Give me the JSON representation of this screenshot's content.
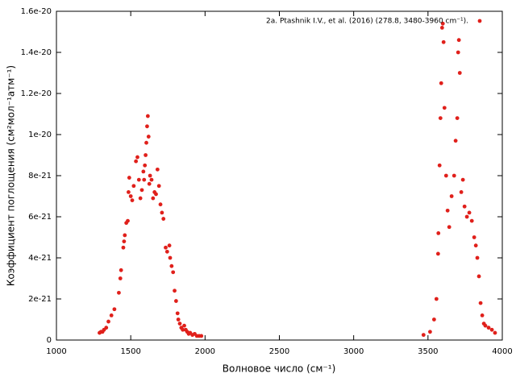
{
  "chart_data": {
    "type": "scatter",
    "xlabel": "Волновое число (см⁻¹)",
    "ylabel": "Коэффициент поглощения (см²мол⁻¹атм⁻¹)",
    "xlim": [
      1000,
      4000
    ],
    "xticks": [
      1000,
      1500,
      2000,
      2500,
      3000,
      3500,
      4000
    ],
    "ylim": [
      0,
      1.6e-20
    ],
    "yticks": [
      0,
      2e-21,
      4e-21,
      6e-21,
      8e-21,
      1e-20,
      1.2e-20,
      1.4e-20,
      1.6e-20
    ],
    "legend": "top right",
    "series": [
      {
        "name": "2a. Ptashnik I.V., et al. (2016) (278.8, 3480-3960 cm⁻¹).",
        "color": "#e0201b",
        "x": [
          1290,
          1300,
          1310,
          1320,
          1335,
          1350,
          1370,
          1390,
          1420,
          1430,
          1435,
          1450,
          1455,
          1460,
          1470,
          1480,
          1485,
          1490,
          1500,
          1510,
          1520,
          1535,
          1545,
          1555,
          1565,
          1575,
          1585,
          1590,
          1595,
          1600,
          1605,
          1610,
          1615,
          1620,
          1625,
          1630,
          1640,
          1650,
          1660,
          1670,
          1680,
          1690,
          1700,
          1710,
          1720,
          1735,
          1745,
          1760,
          1765,
          1775,
          1785,
          1795,
          1805,
          1815,
          1820,
          1830,
          1840,
          1850,
          1860,
          1870,
          1880,
          1890,
          1900,
          1915,
          1930,
          1945,
          1960,
          1975,
          3470,
          3514,
          3541,
          3557,
          3568,
          3570,
          3578,
          3584,
          3589,
          3595,
          3600,
          3605,
          3611,
          3622,
          3632,
          3643,
          3659,
          3676,
          3686,
          3697,
          3703,
          3708,
          3714,
          3724,
          3735,
          3746,
          3762,
          3778,
          3795,
          3811,
          3822,
          3832,
          3843,
          3854,
          3865,
          3876,
          3886,
          3908,
          3930,
          3951
        ],
        "values": [
          3.5e-22,
          4e-22,
          4e-22,
          5e-22,
          6e-22,
          9e-22,
          1.2e-21,
          1.5e-21,
          2.3e-21,
          3e-21,
          3.4e-21,
          4.5e-21,
          4.8e-21,
          5.1e-21,
          5.7e-21,
          5.8e-21,
          7.2e-21,
          7.9e-21,
          7e-21,
          6.8e-21,
          7.5e-21,
          8.7e-21,
          8.9e-21,
          7.8e-21,
          6.9e-21,
          7.3e-21,
          8.2e-21,
          7.8e-21,
          8.5e-21,
          9e-21,
          9.6e-21,
          1.04e-20,
          1.09e-20,
          9.9e-21,
          7.6e-21,
          8e-21,
          7.8e-21,
          6.9e-21,
          7.2e-21,
          7.1e-21,
          8.3e-21,
          7.5e-21,
          6.6e-21,
          6.2e-21,
          5.9e-21,
          4.5e-21,
          4.3e-21,
          4.6e-21,
          4e-21,
          3.6e-21,
          3.3e-21,
          2.4e-21,
          1.9e-21,
          1.3e-21,
          1e-21,
          8e-22,
          6e-22,
          5e-22,
          7e-22,
          5e-22,
          4e-22,
          3e-22,
          3.5e-22,
          2.5e-22,
          3e-22,
          2e-22,
          2e-22,
          2e-22,
          2.5e-22,
          4e-22,
          1e-21,
          2e-21,
          4.2e-21,
          5.2e-21,
          8.5e-21,
          1.08e-20,
          1.25e-20,
          1.52e-20,
          1.54e-20,
          1.45e-20,
          1.13e-20,
          8e-21,
          6.3e-21,
          5.5e-21,
          7e-21,
          8e-21,
          9.7e-21,
          1.08e-20,
          1.4e-20,
          1.46e-20,
          1.3e-20,
          7.2e-21,
          7.8e-21,
          6.5e-21,
          6e-21,
          6.2e-21,
          5.8e-21,
          5e-21,
          4.6e-21,
          4e-21,
          3.1e-21,
          1.8e-21,
          1.2e-21,
          8e-22,
          7e-22,
          6e-22,
          5e-22,
          3.5e-22
        ]
      }
    ]
  }
}
